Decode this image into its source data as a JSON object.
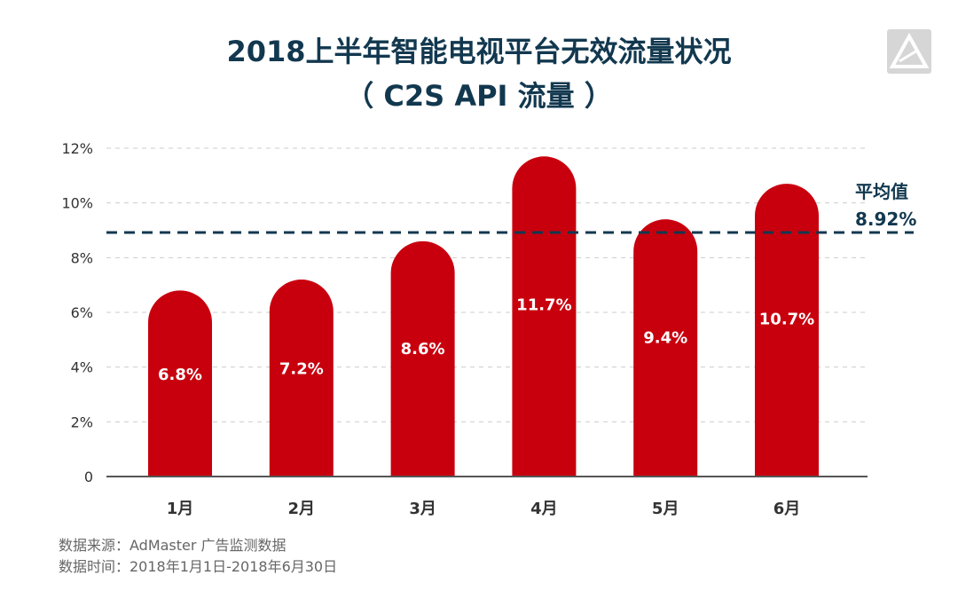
{
  "header": {
    "title_line1": "2018上半年智能电视平台无效流量状况",
    "title_line2": "（ C2S API 流量 ）"
  },
  "logo": {
    "icon": "admaster-triangle-logo-icon",
    "color": "#cccccc"
  },
  "colors": {
    "bar": "#c8000e",
    "average": "#12384f",
    "grid": "#cccccc",
    "axis": "#333333"
  },
  "chart_data": {
    "type": "bar",
    "title": "2018上半年智能电视平台无效流量状况（ C2S API 流量 ）",
    "categories": [
      "1月",
      "2月",
      "3月",
      "4月",
      "5月",
      "6月"
    ],
    "values": [
      6.8,
      7.2,
      8.6,
      11.7,
      9.4,
      10.7
    ],
    "data_labels": [
      "6.8%",
      "7.2%",
      "8.6%",
      "11.7%",
      "9.4%",
      "10.7%"
    ],
    "yticks": [
      "0",
      "2%",
      "4%",
      "6%",
      "8%",
      "10%",
      "12%"
    ],
    "ylim": [
      0,
      12
    ],
    "grid": true,
    "average": {
      "label": "平均值",
      "value": 8.92,
      "value_label": "8.92%"
    }
  },
  "footer": {
    "source": "数据来源：AdMaster 广告监测数据",
    "period": "数据时间：2018年1月1日-2018年6月30日"
  }
}
